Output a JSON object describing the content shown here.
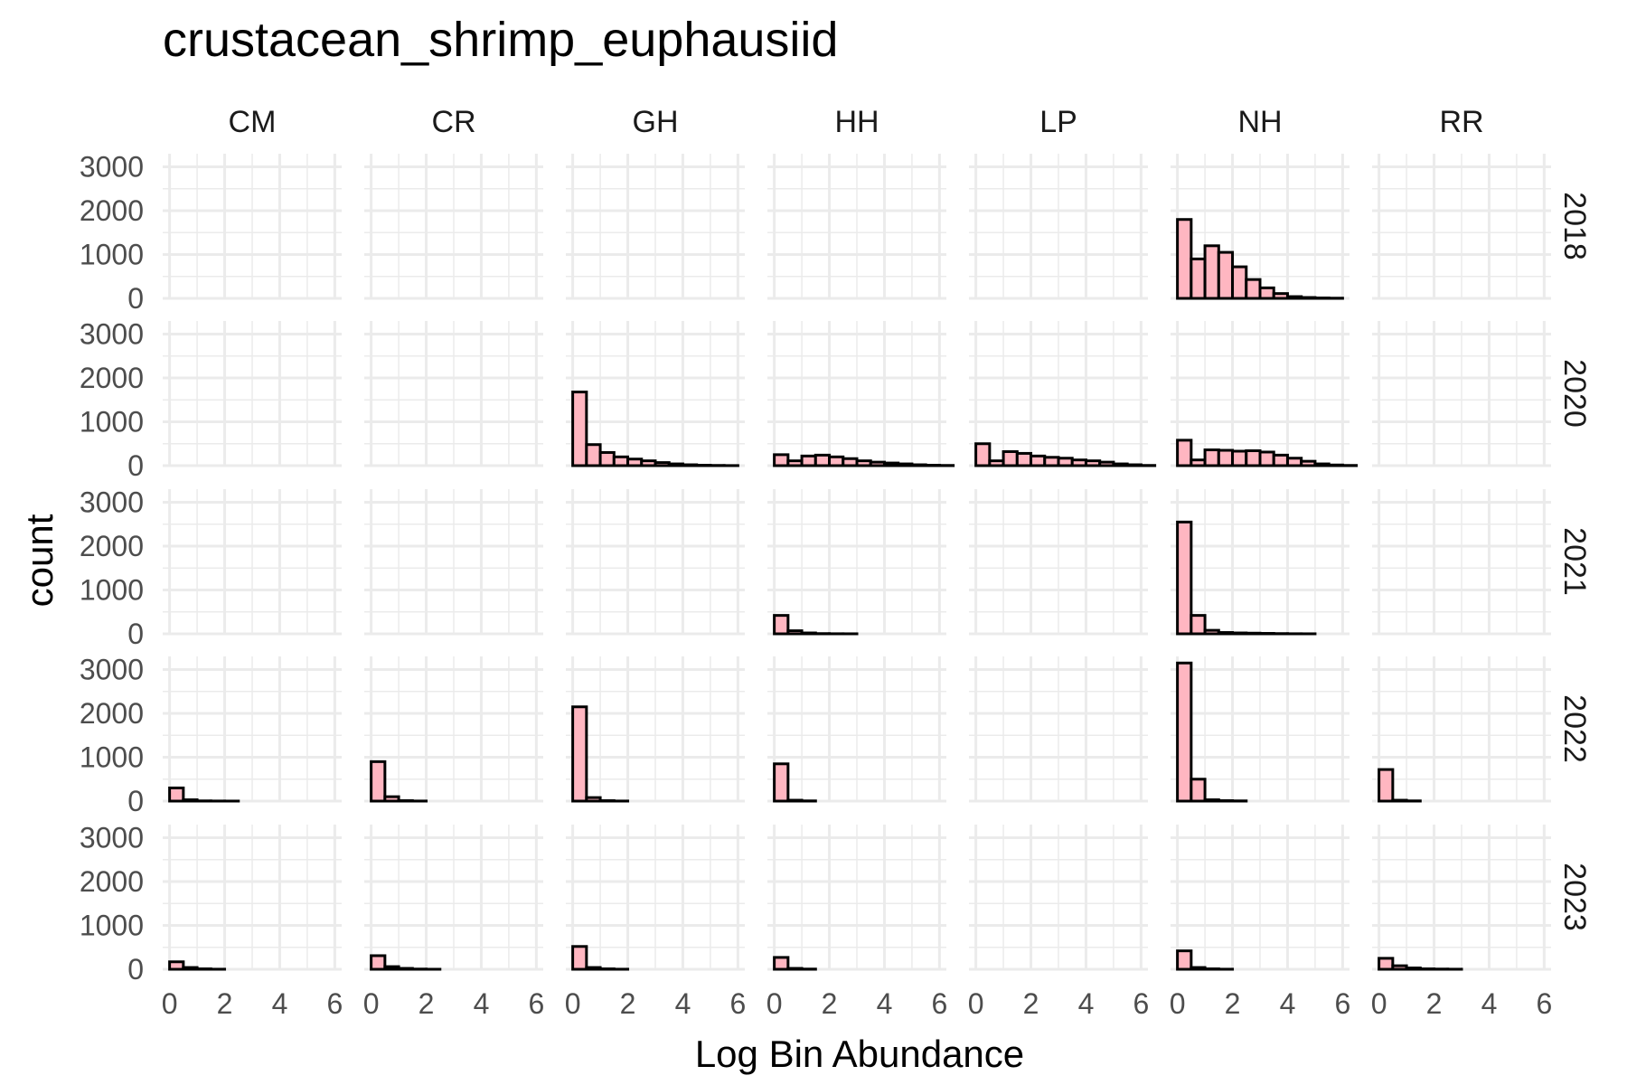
{
  "chart_data": {
    "type": "bar",
    "title": "crustacean_shrimp_euphausiid",
    "xlabel": "Log Bin Abundance",
    "ylabel": "count",
    "facet_columns": [
      "CM",
      "CR",
      "GH",
      "HH",
      "LP",
      "NH",
      "RR"
    ],
    "facet_rows": [
      "2018",
      "2020",
      "2021",
      "2022",
      "2023"
    ],
    "xlim": [
      -0.25,
      6.25
    ],
    "ylim": [
      0,
      3300
    ],
    "x_ticks": [
      0,
      2,
      4,
      6
    ],
    "x_tick_labels": [
      "0",
      "2",
      "4",
      "6"
    ],
    "y_ticks": [
      0,
      1000,
      2000,
      3000
    ],
    "y_tick_labels": [
      "0",
      "1000",
      "2000",
      "3000"
    ],
    "bin_width": 0.5,
    "grid": true,
    "colors": {
      "bar_fill": "#ffb6c1",
      "bar_outline": "#000000",
      "grid": "#ebebeb"
    },
    "panels": [
      {
        "row": "2018",
        "col": "NH",
        "bin_starts": [
          0,
          0.5,
          1,
          1.5,
          2,
          2.5,
          3,
          3.5,
          4,
          4.5,
          5,
          5.5,
          6
        ],
        "counts": [
          1800,
          900,
          1200,
          1050,
          720,
          430,
          240,
          110,
          40,
          20,
          10,
          5,
          0
        ]
      },
      {
        "row": "2020",
        "col": "GH",
        "bin_starts": [
          0,
          0.5,
          1,
          1.5,
          2,
          2.5,
          3,
          3.5,
          4,
          4.5,
          5,
          5.5,
          6
        ],
        "counts": [
          1680,
          480,
          300,
          200,
          150,
          110,
          70,
          40,
          20,
          10,
          5,
          2,
          0
        ]
      },
      {
        "row": "2020",
        "col": "HH",
        "bin_starts": [
          0,
          0.5,
          1,
          1.5,
          2,
          2.5,
          3,
          3.5,
          4,
          4.5,
          5,
          5.5,
          6
        ],
        "counts": [
          250,
          110,
          220,
          240,
          200,
          160,
          110,
          80,
          60,
          40,
          20,
          10,
          5
        ]
      },
      {
        "row": "2020",
        "col": "LP",
        "bin_starts": [
          0,
          0.5,
          1,
          1.5,
          2,
          2.5,
          3,
          3.5,
          4,
          4.5,
          5,
          5.5,
          6
        ],
        "counts": [
          500,
          110,
          320,
          280,
          220,
          190,
          170,
          130,
          110,
          80,
          40,
          20,
          5
        ]
      },
      {
        "row": "2020",
        "col": "NH",
        "bin_starts": [
          0,
          0.5,
          1,
          1.5,
          2,
          2.5,
          3,
          3.5,
          4,
          4.5,
          5,
          5.5,
          6
        ],
        "counts": [
          580,
          130,
          360,
          350,
          330,
          340,
          310,
          240,
          170,
          100,
          40,
          15,
          5
        ]
      },
      {
        "row": "2021",
        "col": "HH",
        "bin_starts": [
          0,
          0.5,
          1,
          1.5,
          2,
          2.5,
          3,
          3.5,
          4,
          4.5,
          5,
          5.5,
          6
        ],
        "counts": [
          420,
          70,
          20,
          5,
          2,
          1,
          0,
          0,
          0,
          0,
          0,
          0,
          0
        ]
      },
      {
        "row": "2021",
        "col": "NH",
        "bin_starts": [
          0,
          0.5,
          1,
          1.5,
          2,
          2.5,
          3,
          3.5,
          4,
          4.5,
          5,
          5.5,
          6
        ],
        "counts": [
          2550,
          420,
          80,
          30,
          20,
          15,
          10,
          5,
          2,
          1,
          0,
          0,
          0
        ]
      },
      {
        "row": "2022",
        "col": "CM",
        "bin_starts": [
          0,
          0.5,
          1,
          1.5,
          2,
          2.5,
          3,
          3.5,
          4,
          4.5,
          5,
          5.5,
          6
        ],
        "counts": [
          300,
          30,
          5,
          2,
          1,
          0,
          0,
          0,
          0,
          0,
          0,
          0,
          0
        ]
      },
      {
        "row": "2022",
        "col": "CR",
        "bin_starts": [
          0,
          0.5,
          1,
          1.5,
          2,
          2.5,
          3,
          3.5,
          4,
          4.5,
          5,
          5.5,
          6
        ],
        "counts": [
          900,
          100,
          10,
          2,
          0,
          0,
          0,
          0,
          0,
          0,
          0,
          0,
          0
        ]
      },
      {
        "row": "2022",
        "col": "GH",
        "bin_starts": [
          0,
          0.5,
          1,
          1.5,
          2,
          2.5,
          3,
          3.5,
          4,
          4.5,
          5,
          5.5,
          6
        ],
        "counts": [
          2150,
          80,
          10,
          2,
          0,
          0,
          0,
          0,
          0,
          0,
          0,
          0,
          0
        ]
      },
      {
        "row": "2022",
        "col": "HH",
        "bin_starts": [
          0,
          0.5,
          1,
          1.5,
          2,
          2.5,
          3,
          3.5,
          4,
          4.5,
          5,
          5.5,
          6
        ],
        "counts": [
          850,
          20,
          5,
          0,
          0,
          0,
          0,
          0,
          0,
          0,
          0,
          0,
          0
        ]
      },
      {
        "row": "2022",
        "col": "NH",
        "bin_starts": [
          0,
          0.5,
          1,
          1.5,
          2,
          2.5,
          3,
          3.5,
          4,
          4.5,
          5,
          5.5,
          6
        ],
        "counts": [
          3150,
          500,
          30,
          10,
          5,
          0,
          0,
          0,
          0,
          0,
          0,
          0,
          0
        ]
      },
      {
        "row": "2022",
        "col": "RR",
        "bin_starts": [
          0,
          0.5,
          1,
          1.5,
          2,
          2.5,
          3,
          3.5,
          4,
          4.5,
          5,
          5.5,
          6
        ],
        "counts": [
          720,
          20,
          5,
          0,
          0,
          0,
          0,
          0,
          0,
          0,
          0,
          0,
          0
        ]
      },
      {
        "row": "2023",
        "col": "CM",
        "bin_starts": [
          0,
          0.5,
          1,
          1.5,
          2,
          2.5,
          3,
          3.5,
          4,
          4.5,
          5,
          5.5,
          6
        ],
        "counts": [
          170,
          40,
          10,
          2,
          0,
          0,
          0,
          0,
          0,
          0,
          0,
          0,
          0
        ]
      },
      {
        "row": "2023",
        "col": "CR",
        "bin_starts": [
          0,
          0.5,
          1,
          1.5,
          2,
          2.5,
          3,
          3.5,
          4,
          4.5,
          5,
          5.5,
          6
        ],
        "counts": [
          310,
          60,
          20,
          5,
          1,
          0,
          0,
          0,
          0,
          0,
          0,
          0,
          0
        ]
      },
      {
        "row": "2023",
        "col": "GH",
        "bin_starts": [
          0,
          0.5,
          1,
          1.5,
          2,
          2.5,
          3,
          3.5,
          4,
          4.5,
          5,
          5.5,
          6
        ],
        "counts": [
          520,
          40,
          10,
          2,
          0,
          0,
          0,
          0,
          0,
          0,
          0,
          0,
          0
        ]
      },
      {
        "row": "2023",
        "col": "HH",
        "bin_starts": [
          0,
          0.5,
          1,
          1.5,
          2,
          2.5,
          3,
          3.5,
          4,
          4.5,
          5,
          5.5,
          6
        ],
        "counts": [
          270,
          20,
          5,
          0,
          0,
          0,
          0,
          0,
          0,
          0,
          0,
          0,
          0
        ]
      },
      {
        "row": "2023",
        "col": "NH",
        "bin_starts": [
          0,
          0.5,
          1,
          1.5,
          2,
          2.5,
          3,
          3.5,
          4,
          4.5,
          5,
          5.5,
          6
        ],
        "counts": [
          420,
          40,
          10,
          2,
          0,
          0,
          0,
          0,
          0,
          0,
          0,
          0,
          0
        ]
      },
      {
        "row": "2023",
        "col": "RR",
        "bin_starts": [
          0,
          0.5,
          1,
          1.5,
          2,
          2.5,
          3,
          3.5,
          4,
          4.5,
          5,
          5.5,
          6
        ],
        "counts": [
          250,
          80,
          30,
          10,
          5,
          2,
          0,
          0,
          0,
          0,
          0,
          0,
          0
        ]
      }
    ]
  }
}
